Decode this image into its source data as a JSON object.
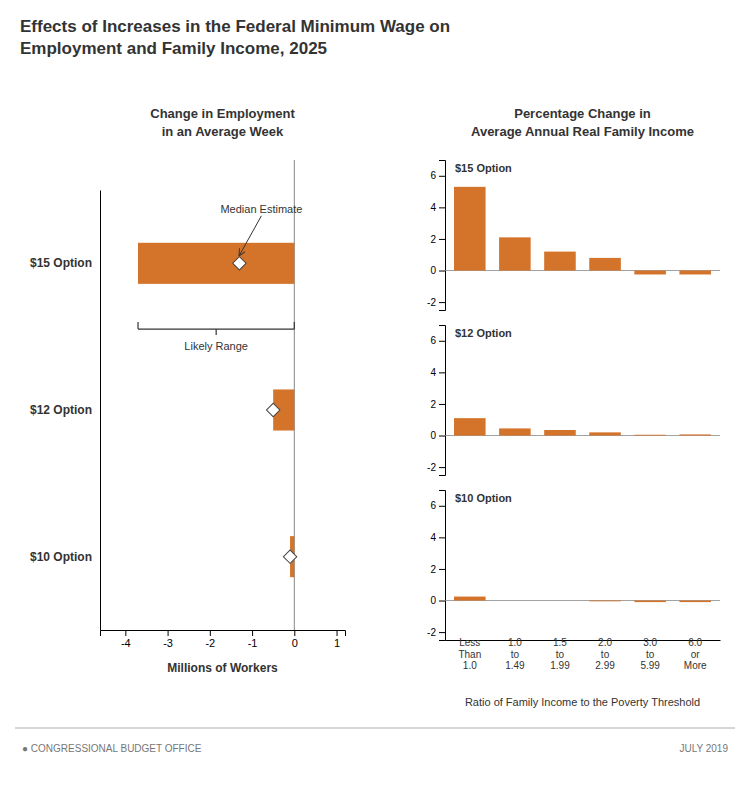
{
  "title": "Effects of Increases in the Federal Minimum Wage on\nEmployment and Family Income, 2025",
  "annotations": [
    "●  CONGRESSIONAL BUDGET OFFICE",
    "JULY 2019"
  ],
  "chart_data": [
    {
      "type": "bar",
      "orientation": "horizontal",
      "title": "Change in Employment\nin an Average Week",
      "xlabel": "Millions of Workers",
      "categories": [
        "$15 Option",
        "$12 Option",
        "$10 Option"
      ],
      "series": [
        {
          "type": "bar",
          "color": "#d4732a",
          "values": [
            -3.7,
            -0.5,
            -0.1
          ]
        },
        {
          "type": "scatter",
          "marker": "diamond",
          "color": "#ffffff",
          "values": [
            -1.3,
            -0.5,
            -0.1
          ]
        }
      ],
      "xlim": [
        -4.6,
        1.2
      ],
      "xticks": [
        -4,
        -3,
        -2,
        -1,
        0,
        1
      ],
      "grid": false,
      "likely_range": [
        -3.7,
        0.0
      ],
      "annotations": [
        "Median Estimate",
        "Likely Range"
      ]
    },
    {
      "type": "bar",
      "title": "Percentage Change in\nAverage Annual Real Family Income",
      "subtitle": "$15 Option",
      "categories": [
        "Less\nThan\n1.0",
        "1.0\nto\n1.49",
        "1.5\nto\n1.99",
        "2.0\nto\n2.99",
        "3.0\nto\n5.99",
        "6.0\nor\nMore"
      ],
      "values": [
        5.3,
        2.1,
        1.2,
        0.8,
        -0.25,
        -0.25
      ],
      "color": "#d4732a",
      "ylim": [
        -2.5,
        7.0
      ],
      "yticks": [
        -2,
        0,
        2,
        4,
        6
      ],
      "grid": false,
      "tick_labels": "y"
    },
    {
      "type": "bar",
      "subtitle": "$12 Option",
      "categories": [
        "Less\nThan\n1.0",
        "1.0\nto\n1.49",
        "1.5\nto\n1.99",
        "2.0\nto\n2.99",
        "3.0\nto\n5.99",
        "6.0\nor\nMore"
      ],
      "values": [
        1.1,
        0.45,
        0.35,
        0.2,
        0.05,
        0.07
      ],
      "color": "#d4732a",
      "ylim": [
        -2.5,
        7.0
      ],
      "yticks": [
        -2,
        0,
        2,
        4,
        6
      ],
      "grid": false,
      "tick_labels": "y"
    },
    {
      "type": "bar",
      "subtitle": "$10 Option",
      "xlabel": "Ratio of Family Income to the Poverty Threshold",
      "categories": [
        "Less\nThan\n1.0",
        "1.0\nto\n1.49",
        "1.5\nto\n1.99",
        "2.0\nto\n2.99",
        "3.0\nto\n5.99",
        "6.0\nor\nMore"
      ],
      "values": [
        0.25,
        0.0,
        0.0,
        -0.05,
        -0.1,
        -0.1
      ],
      "color": "#d4732a",
      "ylim": [
        -2.5,
        7.0
      ],
      "yticks": [
        -2,
        0,
        2,
        4,
        6
      ],
      "grid": false
    }
  ]
}
